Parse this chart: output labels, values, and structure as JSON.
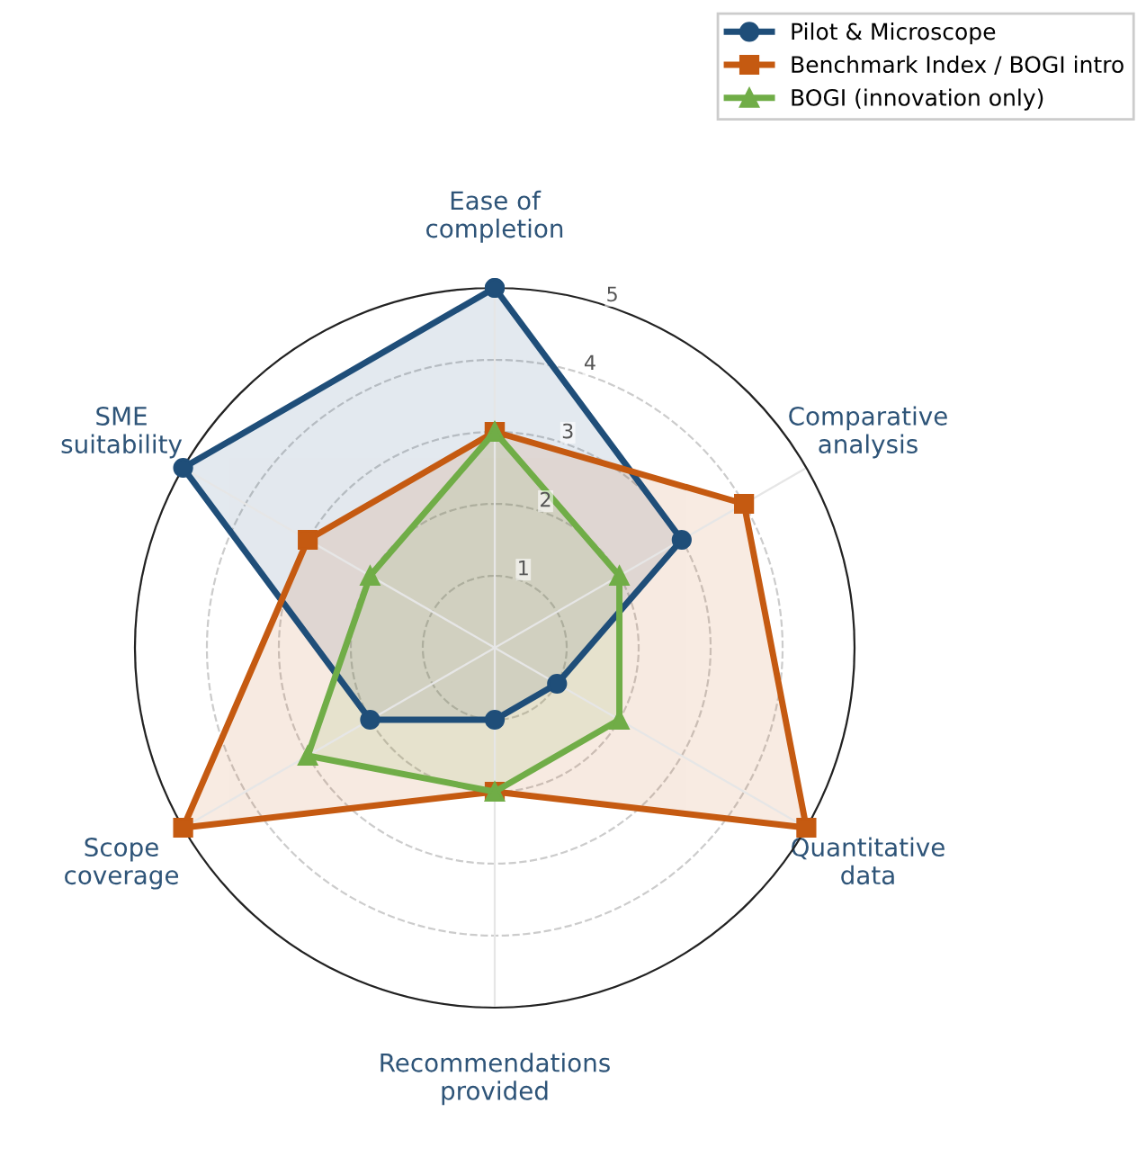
{
  "chart_data": {
    "type": "radar",
    "categories": [
      "Ease of\ncompletion",
      "Comparative\nanalysis",
      "Quantitative\ndata",
      "Recommendations\nprovided",
      "Scope\ncoverage",
      "SME\nsuitability"
    ],
    "series": [
      {
        "name": "Pilot & Microscope",
        "color": "#1f4e79",
        "marker": "circle",
        "values": [
          5,
          3,
          1,
          1,
          2,
          5
        ]
      },
      {
        "name": "Benchmark Index / BOGI intro",
        "color": "#c55a11",
        "marker": "square",
        "values": [
          3,
          4,
          5,
          2,
          5,
          3
        ]
      },
      {
        "name": "BOGI (innovation only)",
        "color": "#70ad47",
        "marker": "triangle",
        "values": [
          3,
          2,
          2,
          2,
          3,
          2
        ]
      }
    ],
    "ylim": [
      0,
      5
    ],
    "yticks": [
      1,
      2,
      3,
      4,
      5
    ],
    "grid": true,
    "legend": "top right",
    "line_style": "solid"
  }
}
